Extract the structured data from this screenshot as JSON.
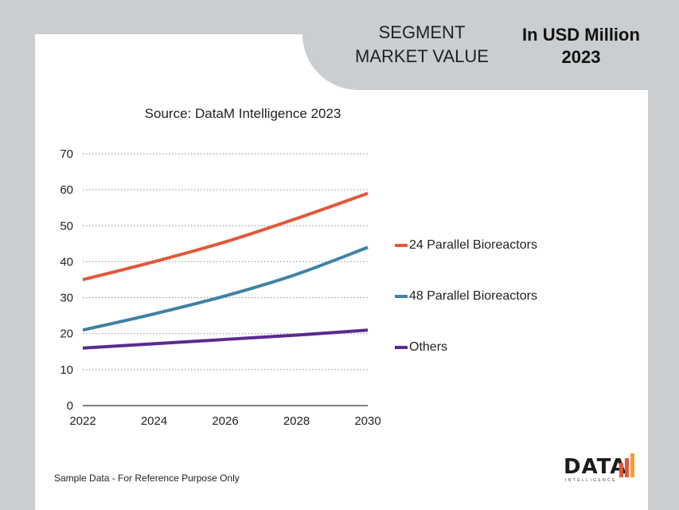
{
  "header": {
    "segment_title": "SEGMENT\nMARKET VALUE",
    "unit_title": "In USD Million\n2023"
  },
  "footer": {
    "note": "Sample Data - For Reference Purpose Only"
  },
  "logo": {
    "text": "DATA",
    "subtext": "INTELLIGENCE"
  },
  "chart_data": {
    "type": "line",
    "title": "Source: DataM Intelligence 2023",
    "x": [
      2022,
      2024,
      2026,
      2028,
      2030
    ],
    "x_ticks": [
      "2022",
      "2024",
      "2026",
      "2028",
      "2030"
    ],
    "y_ticks": [
      "0",
      "10",
      "20",
      "30",
      "40",
      "50",
      "60",
      "70"
    ],
    "ylim": [
      0,
      70
    ],
    "xlim": [
      2022,
      2030
    ],
    "grid": "dotted horizontal",
    "legend": "right",
    "series": [
      {
        "name": "24 Parallel Bioreactors",
        "color": "#e0583a",
        "values": [
          35,
          40,
          45.5,
          52,
          59
        ]
      },
      {
        "name": "48 Parallel Bioreactors",
        "color": "#3f82a3",
        "values": [
          21,
          25.5,
          30.5,
          36.5,
          44
        ]
      },
      {
        "name": "Others",
        "color": "#5b2a91",
        "values": [
          16,
          17.2,
          18.4,
          19.6,
          21
        ]
      }
    ]
  }
}
